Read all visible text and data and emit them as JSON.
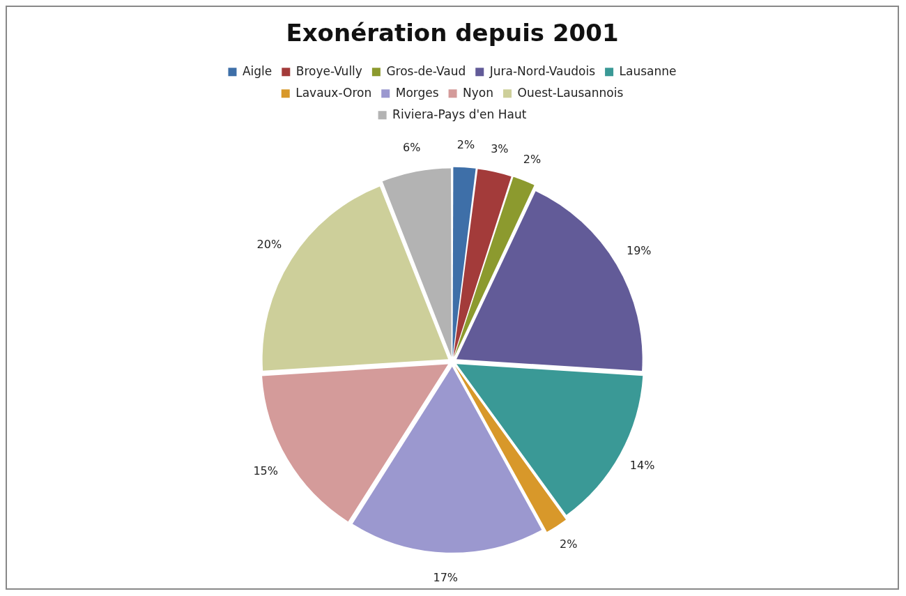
{
  "chart_data": {
    "type": "pie",
    "title": "Exonération depuis 2001",
    "categories": [
      "Aigle",
      "Broye-Vully",
      "Gros-de-Vaud",
      "Jura-Nord-Vaudois",
      "Lausanne",
      "Lavaux-Oron",
      "Morges",
      "Nyon",
      "Ouest-Lausannois",
      "Riviera-Pays d'en Haut"
    ],
    "values": [
      2,
      3,
      2,
      19,
      14,
      2,
      17,
      15,
      20,
      6
    ],
    "value_labels": [
      "2%",
      "3%",
      "2%",
      "19%",
      "14%",
      "2%",
      "17%",
      "15%",
      "20%",
      "6%"
    ],
    "colors": [
      "#3e6fa8",
      "#a33b3a",
      "#8c9a2e",
      "#625b98",
      "#3a9996",
      "#d8982a",
      "#9b98cf",
      "#d49b9a",
      "#cdcf9a",
      "#b3b3b3"
    ],
    "legend": "top"
  }
}
